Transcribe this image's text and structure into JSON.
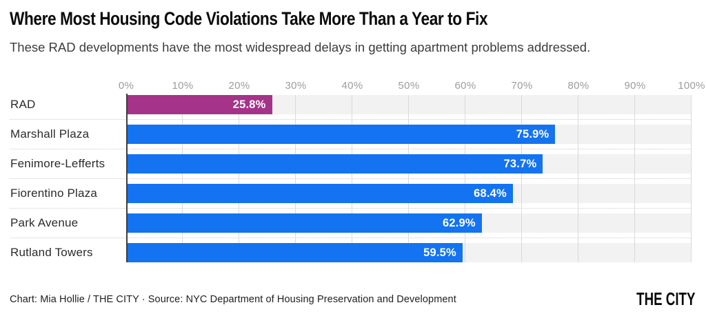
{
  "header": {
    "title": "Where Most Housing Code Violations Take More Than a Year to Fix",
    "subtitle": "These RAD developments have the most widespread delays in getting apartment problems addressed."
  },
  "chart_data": {
    "type": "bar",
    "orientation": "horizontal",
    "categories": [
      "RAD",
      "Marshall Plaza",
      "Fenimore-Lefferts",
      "Fiorentino Plaza",
      "Park Avenue",
      "Rutland Towers"
    ],
    "values": [
      25.8,
      75.9,
      73.7,
      68.4,
      62.9,
      59.5
    ],
    "value_labels": [
      "25.8%",
      "75.9%",
      "73.7%",
      "68.4%",
      "62.9%",
      "59.5%"
    ],
    "colors": [
      "#a53389",
      "#1473f0",
      "#1473f0",
      "#1473f0",
      "#1473f0",
      "#1473f0"
    ],
    "highlight_color": "#a53389",
    "bar_color": "#1473f0",
    "x_ticks": [
      0,
      10,
      20,
      30,
      40,
      50,
      60,
      70,
      80,
      90,
      100
    ],
    "x_tick_labels": [
      "0%",
      "10%",
      "20%",
      "30%",
      "40%",
      "50%",
      "60%",
      "70%",
      "80%",
      "90%",
      "100%"
    ],
    "xlim": [
      0,
      100
    ],
    "grid": "vertical",
    "track_background": "#f2f2f2",
    "gridline_color": "#d9d9d9",
    "axis_line_color": "#3e3e3e"
  },
  "footer": {
    "credit": "Chart: Mia Hollie / THE CITY · Source: NYC Department of Housing Preservation and Development",
    "logo": "THE CITY"
  }
}
